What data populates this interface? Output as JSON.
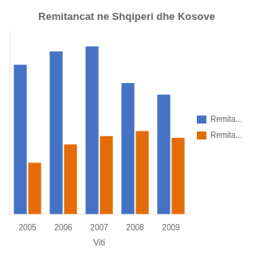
{
  "chart_data": {
    "type": "bar",
    "title": "Remitancat ne Shqiperi dhe Kosove",
    "xlabel": "Viti",
    "categories": [
      "2005",
      "2006",
      "2007",
      "2008",
      "2009"
    ],
    "series": [
      {
        "name": "Remita...",
        "color": "#4472C4",
        "values": [
          900,
          980,
          1010,
          790,
          720
        ]
      },
      {
        "name": "Remita...",
        "color": "#E36C09",
        "values": [
          310,
          420,
          470,
          500,
          460
        ]
      }
    ],
    "ylim": [
      0,
      1100
    ],
    "grid": false,
    "legend": "right",
    "tick_labels": "x"
  }
}
